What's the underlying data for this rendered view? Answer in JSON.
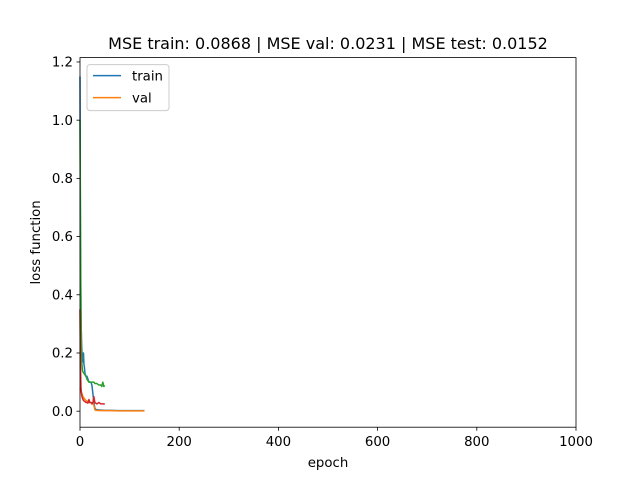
{
  "chart_data": {
    "type": "line",
    "title": "MSE train: 0.0868 | MSE val: 0.0231 | MSE test: 0.0152",
    "xlabel": "epoch",
    "ylabel": "loss function",
    "xlim": [
      0,
      1000
    ],
    "ylim": [
      -0.055,
      1.215
    ],
    "xticks": [
      0,
      200,
      400,
      600,
      800,
      1000
    ],
    "yticks": [
      0.0,
      0.2,
      0.4,
      0.6,
      0.8,
      1.0,
      1.2
    ],
    "xtick_labels": [
      "0",
      "200",
      "400",
      "600",
      "800",
      "1000"
    ],
    "ytick_labels": [
      "0.0",
      "0.2",
      "0.4",
      "0.6",
      "0.8",
      "1.0",
      "1.2"
    ],
    "grid": false,
    "legend_position": "upper-left",
    "legend": [
      {
        "label": "train",
        "color": "#1f77b4"
      },
      {
        "label": "val",
        "color": "#ff7f0e"
      }
    ],
    "series": [
      {
        "name": "train",
        "color": "#1f77b4",
        "x": [
          0,
          1,
          2,
          3,
          4,
          5,
          6,
          7,
          8,
          9,
          10,
          12,
          14,
          16,
          18,
          20,
          22,
          24,
          26,
          28,
          30,
          32,
          35,
          40,
          50,
          60,
          80,
          100,
          120,
          130
        ],
        "y": [
          1.15,
          0.55,
          0.32,
          0.24,
          0.2,
          0.18,
          0.17,
          0.2,
          0.16,
          0.15,
          0.13,
          0.12,
          0.12,
          0.11,
          0.1,
          0.1,
          0.1,
          0.09,
          0.06,
          0.03,
          0.01,
          0.006,
          0.005,
          0.004,
          0.003,
          0.003,
          0.002,
          0.002,
          0.002,
          0.002
        ]
      },
      {
        "name": "val",
        "color": "#ff7f0e",
        "x": [
          0,
          2,
          4,
          6,
          8,
          10,
          14,
          18,
          22,
          26,
          28,
          30,
          32,
          35,
          40,
          50,
          60,
          80,
          100,
          120,
          130
        ],
        "y": [
          0.08,
          0.07,
          0.06,
          0.05,
          0.045,
          0.04,
          0.035,
          0.03,
          0.03,
          0.028,
          0.02,
          0.005,
          0.003,
          0.003,
          0.002,
          0.002,
          0.002,
          0.001,
          0.001,
          0.001,
          0.001
        ]
      },
      {
        "color": "#2ca02c",
        "x": [
          0,
          1,
          2,
          3,
          4,
          5,
          6,
          8,
          10,
          12,
          14,
          16,
          18,
          20,
          24,
          28,
          30,
          34,
          38,
          42,
          44,
          46,
          48,
          50
        ],
        "y": [
          1.0,
          0.6,
          0.35,
          0.22,
          0.16,
          0.14,
          0.135,
          0.13,
          0.125,
          0.12,
          0.11,
          0.105,
          0.1,
          0.1,
          0.1,
          0.1,
          0.095,
          0.095,
          0.09,
          0.09,
          0.085,
          0.1,
          0.085,
          0.088
        ]
      },
      {
        "color": "#d62728",
        "x": [
          0,
          1,
          2,
          3,
          4,
          5,
          6,
          8,
          10,
          12,
          14,
          16,
          18,
          20,
          22,
          24,
          26,
          28,
          30,
          34,
          38,
          42,
          46,
          50
        ],
        "y": [
          0.35,
          0.15,
          0.08,
          0.06,
          0.05,
          0.045,
          0.04,
          0.035,
          0.033,
          0.03,
          0.03,
          0.028,
          0.04,
          0.03,
          0.03,
          0.025,
          0.03,
          0.05,
          0.03,
          0.025,
          0.03,
          0.025,
          0.025,
          0.025
        ]
      }
    ]
  }
}
